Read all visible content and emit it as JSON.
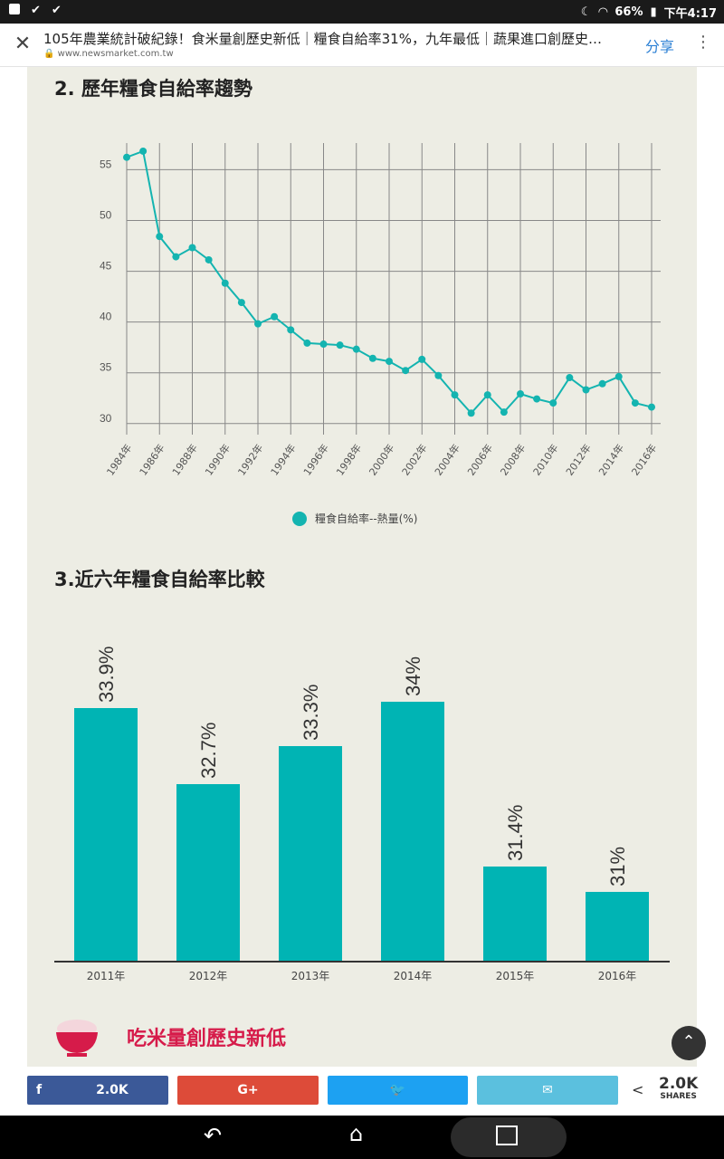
{
  "status_bar": {
    "battery": "66%",
    "time": "下午4:17"
  },
  "toolbar": {
    "title": "105年農業統計破紀錄！食米量創歷史新低｜糧食自給率31%，九年最低｜蔬果進口創歷史…",
    "url": "www.newsmarket.com.tw",
    "share_label": "分享"
  },
  "section2": {
    "heading": "2. 歷年糧食自給率趨勢"
  },
  "section3": {
    "heading": "3.近六年糧食自給率比較"
  },
  "section4": {
    "heading": "吃米量創歷史新低"
  },
  "charts": [
    {
      "chart_data": {
        "type": "line",
        "x": [
          1984,
          1985,
          1986,
          1987,
          1988,
          1989,
          1990,
          1991,
          1992,
          1993,
          1994,
          1995,
          1996,
          1997,
          1998,
          1999,
          2000,
          2001,
          2002,
          2003,
          2004,
          2005,
          2006,
          2007,
          2008,
          2009,
          2010,
          2011,
          2012,
          2013,
          2014,
          2015,
          2016
        ],
        "x_tick_labels": [
          "1984年",
          "1986年",
          "1988年",
          "1990年",
          "1992年",
          "1994年",
          "1996年",
          "1998年",
          "2000年",
          "2002年",
          "2004年",
          "2006年",
          "2008年",
          "2010年",
          "2012年",
          "2014年",
          "2016年"
        ],
        "series": [
          {
            "name": "糧食自給率--熱量(%)",
            "values": [
              55.6,
              56.2,
              47.8,
              45.8,
              46.7,
              45.5,
              43.2,
              41.3,
              39.2,
              39.9,
              38.6,
              37.3,
              37.2,
              37.1,
              36.7,
              35.8,
              35.5,
              34.6,
              35.7,
              34.1,
              32.2,
              30.4,
              32.2,
              30.5,
              32.3,
              31.8,
              31.4,
              33.9,
              32.7,
              33.3,
              34.0,
              31.4,
              31.0
            ],
            "color": "#14b4b0"
          }
        ],
        "y_ticks": [
          30,
          35,
          40,
          45,
          50,
          55
        ],
        "ylim": [
          29,
          57
        ],
        "grid": true,
        "legend": "bottom-center"
      }
    },
    {
      "chart_data": {
        "type": "bar",
        "categories": [
          "2011年",
          "2012年",
          "2013年",
          "2014年",
          "2015年",
          "2016年"
        ],
        "values": [
          33.9,
          32.7,
          33.3,
          34,
          31.4,
          31
        ],
        "data_labels": [
          "33.9%",
          "32.7%",
          "33.3%",
          "34%",
          "31.4%",
          "31%"
        ],
        "ylim": [
          29.9,
          34.3
        ],
        "color": "#00b4b4"
      }
    }
  ],
  "share_bar": {
    "facebook_count": "2.0K",
    "googleplus_label": "G+",
    "total_count": "2.0K",
    "total_label": "SHARES"
  },
  "colors": {
    "teal": "#14b4b0",
    "facebook": "#3b5998",
    "googleplus": "#dd4b39",
    "twitter": "#1da1f2",
    "email": "#5bc0de",
    "section_red": "#d61b4a"
  },
  "icons": [
    "facebook-icon",
    "wifi-icon",
    "battery-icon",
    "moon-icon",
    "close-icon",
    "lock-icon",
    "more-icon",
    "chevron-up-icon",
    "back-icon",
    "home-icon",
    "recents-icon",
    "share-icon",
    "twitter-icon",
    "email-icon",
    "rice-bowl-icon"
  ]
}
